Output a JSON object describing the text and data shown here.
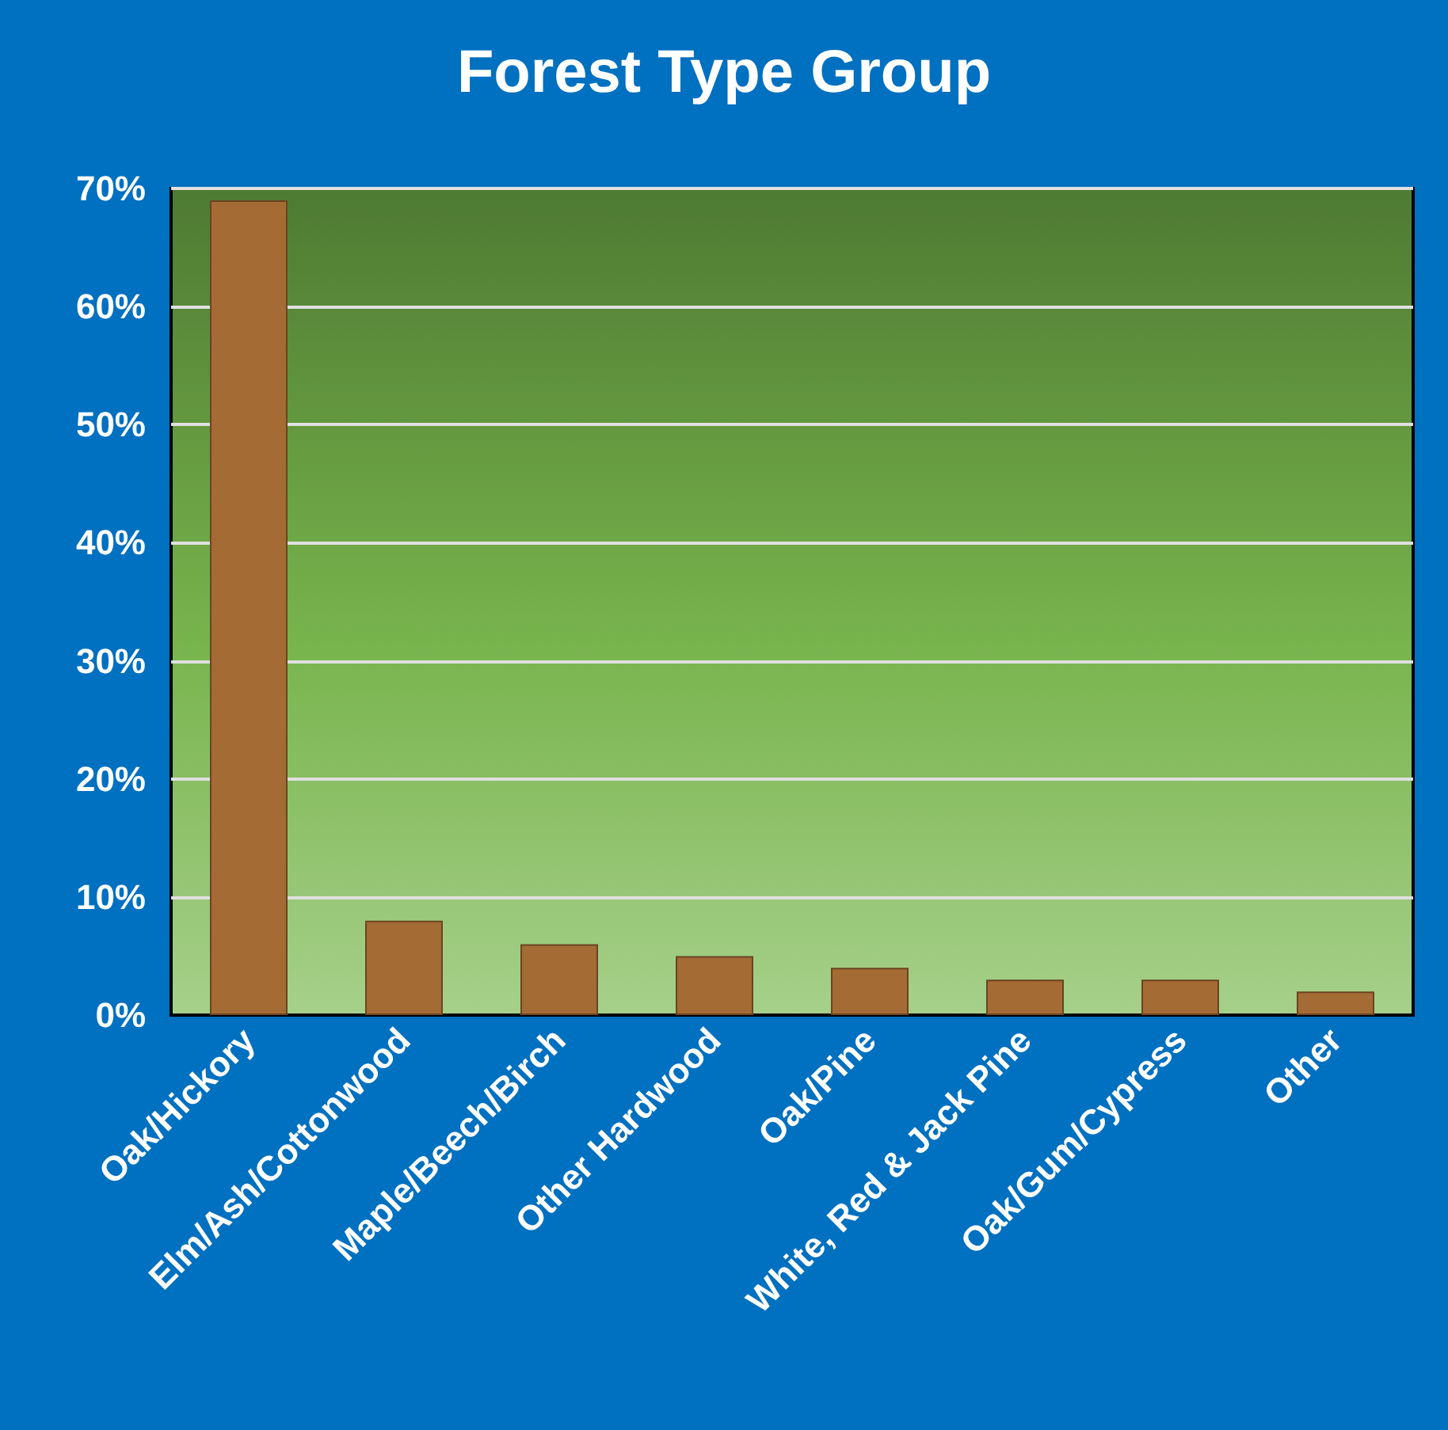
{
  "chart_data": {
    "type": "bar",
    "title": "Forest Type Group",
    "categories": [
      "Oak/Hickory",
      "Elm/Ash/Cottonwood",
      "Maple/Beech/Birch",
      "Other Hardwood",
      "Oak/Pine",
      "White, Red & Jack Pine",
      "Oak/Gum/Cypress",
      "Other"
    ],
    "values": [
      69,
      8,
      6,
      5,
      4,
      3,
      3,
      2
    ],
    "color": "#a46b35",
    "ylim": [
      0,
      70
    ],
    "yticks": [
      {
        "value": 0,
        "label": "0%"
      },
      {
        "value": 10,
        "label": "10%"
      },
      {
        "value": 20,
        "label": "20%"
      },
      {
        "value": 30,
        "label": "30%"
      },
      {
        "value": 40,
        "label": "40%"
      },
      {
        "value": 50,
        "label": "50%"
      },
      {
        "value": 60,
        "label": "60%"
      },
      {
        "value": 70,
        "label": "70%"
      }
    ],
    "grid": "y"
  }
}
